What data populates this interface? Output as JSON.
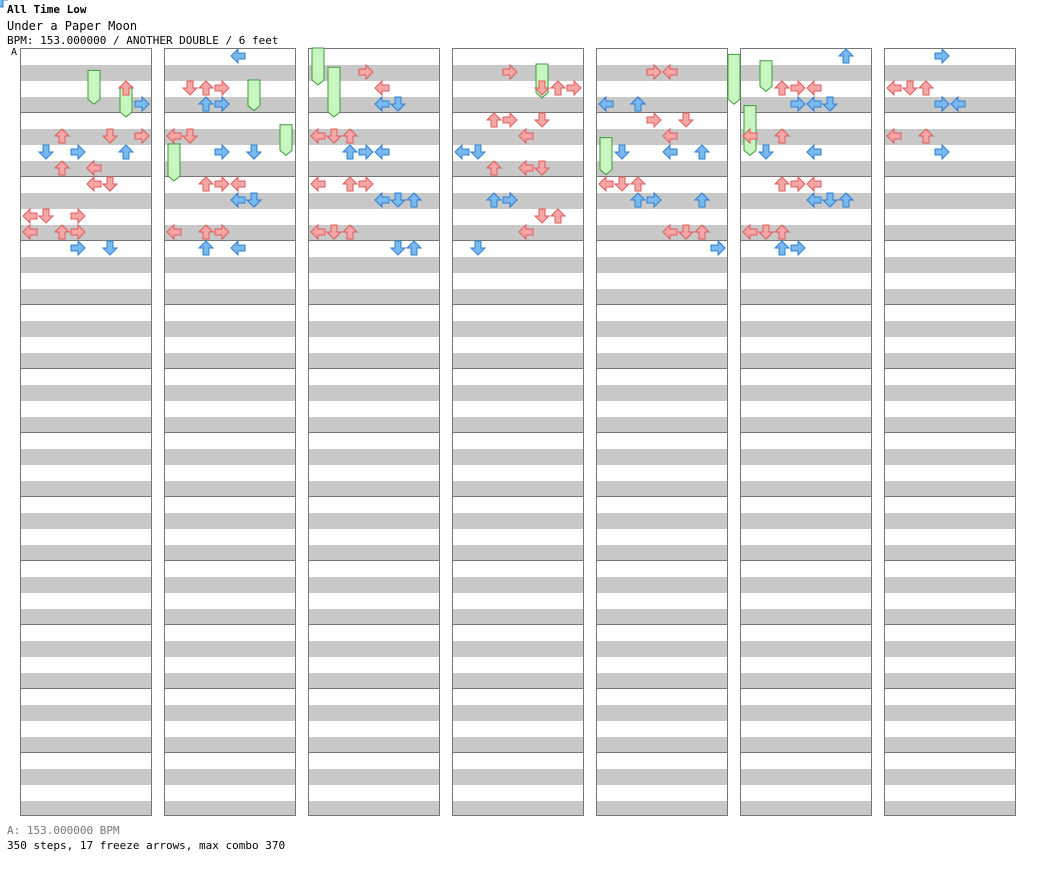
{
  "song": {
    "artist": "All Time Low",
    "title": "Under a Paper Moon",
    "meta": "BPM: 153.000000 / ANOTHER DOUBLE / 6 feet",
    "section_marker": "A"
  },
  "footer": {
    "bpm_line": "A: 153.000000 BPM",
    "stats_line": "350 steps, 17 freeze arrows, max combo 370"
  },
  "colors": {
    "red": "#f7a6a6",
    "red_stroke": "#e05a5a",
    "blue": "#7ab8f0",
    "blue_stroke": "#2f7fd0",
    "green": "#c8f5c0",
    "green_stroke": "#3c9a3c"
  },
  "chart": {
    "columns": 7,
    "measures_per_column": 12,
    "lanes": [
      "L",
      "D",
      "U",
      "R",
      "L",
      "D",
      "U",
      "R"
    ],
    "steps": [
      [
        0,
        2,
        6
      ],
      [
        0,
        2,
        7
      ],
      [
        0,
        3,
        7
      ],
      [
        0,
        3,
        8
      ],
      [
        0,
        4,
        5
      ],
      [
        0,
        4,
        6
      ],
      [
        0,
        5,
        2
      ],
      [
        0,
        5,
        3
      ],
      [
        0,
        5,
        4
      ],
      [
        0,
        6,
        1
      ],
      [
        0,
        6,
        2
      ],
      [
        0,
        6,
        5
      ],
      [
        0,
        7,
        4
      ],
      [
        0,
        7,
        5
      ],
      [
        0,
        8,
        3
      ],
      [
        0,
        8,
        4
      ],
      [
        0,
        9,
        1
      ],
      [
        0,
        9,
        3
      ],
      [
        0,
        10,
        0
      ],
      [
        0,
        10,
        2
      ],
      [
        0,
        10,
        5
      ],
      [
        0,
        11,
        0
      ],
      [
        0,
        11,
        3
      ],
      [
        1,
        0,
        3
      ],
      [
        1,
        0,
        4
      ],
      [
        1,
        1,
        2
      ],
      [
        1,
        1,
        3
      ],
      [
        1,
        2,
        1
      ],
      [
        1,
        2,
        3
      ],
      [
        1,
        3,
        0
      ],
      [
        1,
        3,
        2
      ],
      [
        1,
        4,
        1
      ],
      [
        1,
        4,
        3
      ],
      [
        1,
        5,
        1
      ],
      [
        1,
        5,
        5
      ],
      [
        1,
        6,
        2
      ],
      [
        1,
        6,
        5
      ],
      [
        1,
        7,
        3
      ],
      [
        1,
        7,
        5
      ],
      [
        1,
        8,
        4
      ],
      [
        1,
        8,
        5
      ],
      [
        1,
        9,
        2
      ],
      [
        1,
        9,
        4
      ],
      [
        1,
        10,
        0
      ],
      [
        1,
        10,
        2
      ],
      [
        1,
        11,
        3
      ],
      [
        1,
        11,
        4
      ],
      [
        2,
        0,
        4
      ],
      [
        2,
        1,
        3
      ],
      [
        2,
        2,
        5
      ],
      [
        2,
        3,
        1
      ],
      [
        2,
        3,
        4
      ],
      [
        2,
        4,
        0
      ],
      [
        2,
        4,
        2
      ],
      [
        2,
        5,
        2
      ],
      [
        2,
        5,
        4
      ],
      [
        2,
        6,
        0
      ],
      [
        2,
        6,
        3
      ],
      [
        2,
        7,
        2
      ],
      [
        2,
        7,
        5
      ],
      [
        2,
        8,
        3
      ],
      [
        2,
        8,
        6
      ],
      [
        2,
        9,
        0
      ],
      [
        2,
        9,
        4
      ],
      [
        2,
        10,
        1
      ],
      [
        2,
        10,
        5
      ],
      [
        2,
        11,
        2
      ],
      [
        2,
        11,
        6
      ],
      [
        3,
        0,
        5
      ],
      [
        3,
        1,
        3
      ],
      [
        3,
        1,
        6
      ],
      [
        3,
        2,
        5
      ],
      [
        3,
        2,
        7
      ],
      [
        3,
        3,
        2
      ],
      [
        3,
        3,
        4
      ],
      [
        3,
        4,
        3
      ],
      [
        3,
        5,
        0
      ],
      [
        3,
        5,
        2
      ],
      [
        3,
        6,
        1
      ],
      [
        3,
        6,
        4
      ],
      [
        3,
        7,
        3
      ],
      [
        3,
        7,
        5
      ],
      [
        3,
        8,
        2
      ],
      [
        3,
        8,
        5
      ],
      [
        3,
        9,
        3
      ],
      [
        3,
        9,
        6
      ],
      [
        3,
        10,
        1
      ],
      [
        3,
        11,
        4
      ],
      [
        4,
        0,
        3
      ],
      [
        4,
        1,
        2
      ],
      [
        4,
        1,
        4
      ],
      [
        4,
        2,
        0
      ],
      [
        4,
        2,
        3
      ],
      [
        4,
        3,
        2
      ],
      [
        4,
        3,
        5
      ],
      [
        4,
        4,
        1
      ],
      [
        4,
        5,
        4
      ],
      [
        4,
        5,
        6
      ],
      [
        4,
        6,
        2
      ],
      [
        4,
        6,
        4
      ],
      [
        4,
        7,
        1
      ],
      [
        4,
        7,
        3
      ],
      [
        4,
        8,
        0
      ],
      [
        4,
        8,
        2
      ],
      [
        4,
        9,
        4
      ],
      [
        4,
        9,
        6
      ],
      [
        4,
        10,
        5
      ],
      [
        4,
        10,
        7
      ],
      [
        4,
        11,
        6
      ],
      [
        4,
        11,
        7
      ],
      [
        5,
        0,
        4
      ],
      [
        5,
        0,
        6
      ],
      [
        5,
        1,
        3
      ],
      [
        5,
        1,
        5
      ],
      [
        5,
        2,
        2
      ],
      [
        5,
        2,
        4
      ],
      [
        5,
        3,
        0
      ],
      [
        5,
        3,
        3
      ],
      [
        5,
        4,
        2
      ],
      [
        5,
        4,
        4
      ],
      [
        5,
        5,
        0
      ],
      [
        5,
        5,
        1
      ],
      [
        5,
        6,
        2
      ],
      [
        5,
        6,
        4
      ],
      [
        5,
        7,
        3
      ],
      [
        5,
        7,
        6
      ],
      [
        5,
        8,
        4
      ],
      [
        5,
        8,
        5
      ],
      [
        5,
        9,
        2
      ],
      [
        5,
        9,
        4
      ],
      [
        5,
        10,
        1
      ],
      [
        5,
        10,
        3
      ],
      [
        5,
        11,
        0
      ],
      [
        5,
        11,
        2
      ],
      [
        6,
        0,
        0
      ],
      [
        6,
        0,
        3
      ],
      [
        6,
        1,
        1
      ],
      [
        6,
        1,
        3
      ],
      [
        6,
        2,
        2
      ],
      [
        6,
        2,
        4
      ],
      [
        6,
        3,
        2
      ],
      [
        6,
        3,
        3
      ],
      [
        6,
        4,
        0
      ],
      [
        6,
        4,
        3
      ]
    ],
    "freezes": [
      [
        0,
        4,
        0.35,
        0.8
      ],
      [
        0,
        6,
        0.6,
        1.0
      ],
      [
        0,
        9,
        1.5,
        2.0
      ],
      [
        1,
        5,
        0.5,
        0.9
      ],
      [
        1,
        7,
        1.2,
        1.6
      ],
      [
        1,
        10,
        0.3,
        1.0
      ],
      [
        2,
        0,
        0.0,
        0.5
      ],
      [
        3,
        5,
        0.25,
        0.7
      ],
      [
        3,
        9,
        1.4,
        1.9
      ],
      [
        4,
        8,
        0.1,
        0.8
      ],
      [
        4,
        9,
        0.9,
        1.6
      ],
      [
        5,
        1,
        0.2,
        0.6
      ]
    ]
  }
}
